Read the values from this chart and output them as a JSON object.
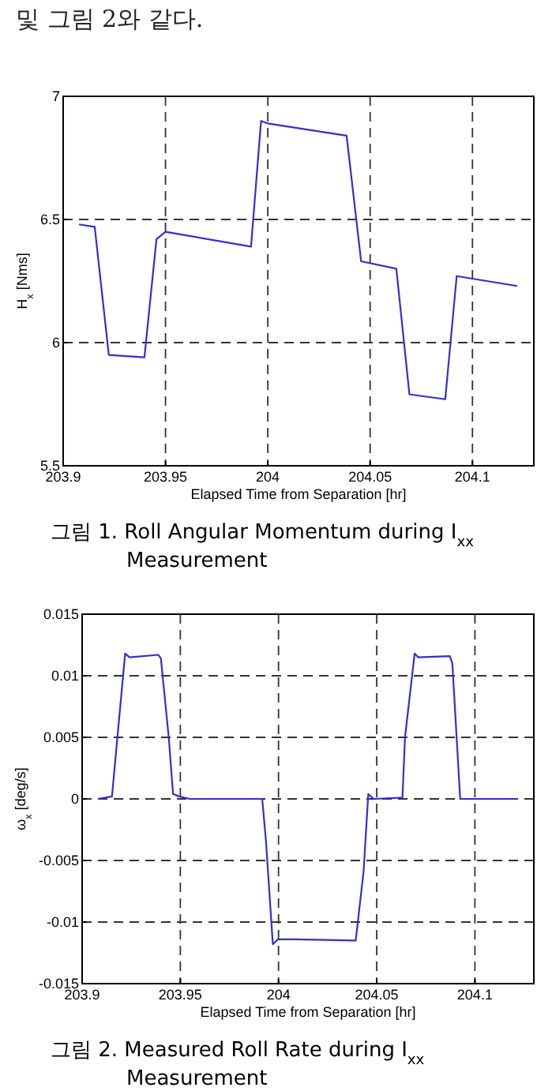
{
  "chart_data": [
    {
      "type": "line",
      "annotations": [
        "및 그림 2와 같다."
      ],
      "title": "그림 1. Roll Angular Momentum during I$_{xx}$ Measurement",
      "xlabel": "Elapsed Time from Separation [hr]",
      "ylabel": "H$_{x}$ [Nms]",
      "xlim": [
        203.9,
        204.13
      ],
      "ylim": [
        5.5,
        7
      ],
      "xticks": [
        203.9,
        203.95,
        204,
        204.05,
        204.1
      ],
      "yticks": [
        5.5,
        6,
        6.5,
        7
      ],
      "grid": true,
      "line_style": "solid",
      "series": [
        {
          "color": "#3030d0",
          "x": [
            203.9077,
            203.9154,
            203.9223,
            203.9397,
            203.9456,
            203.95,
            203.9918,
            203.9967,
            204.0,
            204.0385,
            204.0456,
            204.0628,
            204.0692,
            204.0867,
            204.0923,
            204.1218
          ],
          "values": [
            6.48,
            6.47,
            5.95,
            5.94,
            6.42,
            6.45,
            6.39,
            6.9,
            6.89,
            6.84,
            6.33,
            6.3,
            5.79,
            5.77,
            6.27,
            6.23
          ]
        }
      ]
    },
    {
      "type": "line",
      "title": "그림 2. Measured Roll Rate during I$_{xx}$ Measurement",
      "xlabel": "Elapsed Time from Separation [hr]",
      "ylabel": "ω$_{x}$ [deg/s]",
      "xlim": [
        203.9,
        204.13
      ],
      "ylim": [
        -0.015,
        0.015
      ],
      "xticks": [
        203.9,
        203.95,
        204,
        204.05,
        204.1
      ],
      "yticks": [
        -0.015,
        -0.01,
        -0.005,
        0,
        0.005,
        0.01,
        0.015
      ],
      "grid": true,
      "line_style": "solid",
      "series": [
        {
          "color": "#3030d0",
          "x": [
            203.908,
            203.9152,
            203.9179,
            203.9219,
            203.9241,
            203.9388,
            203.9401,
            203.9441,
            203.9463,
            203.9495,
            203.9548,
            203.9917,
            203.9936,
            203.9971,
            203.9997,
            204.0083,
            204.0393,
            204.0433,
            204.0457,
            204.0484,
            204.0631,
            204.0644,
            204.0693,
            204.0711,
            204.0872,
            204.0885,
            204.0925,
            204.1219
          ],
          "values": [
            0,
            0.0002,
            0.0049,
            0.0118,
            0.0115,
            0.0117,
            0.0114,
            0.005,
            0.0004,
            0.0002,
            0,
            0,
            -0.0034,
            -0.0118,
            -0.0114,
            -0.0114,
            -0.0115,
            -0.0059,
            0.0004,
            0,
            0.0001,
            0.005,
            0.0118,
            0.0115,
            0.0116,
            0.011,
            0,
            0
          ]
        }
      ]
    }
  ]
}
